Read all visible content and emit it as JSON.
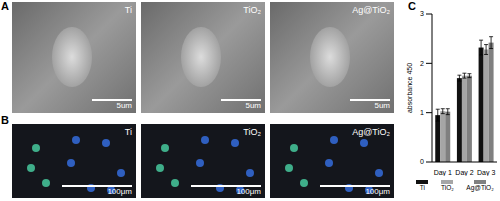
{
  "panel_labels": [
    "A",
    "B",
    "C"
  ],
  "sem_images": [
    {
      "label": "Ti",
      "scale_bar": "5um"
    },
    {
      "label": "TiO₂",
      "scale_bar": "5um"
    },
    {
      "label": "Ag@TiO₂",
      "scale_bar": "5um"
    }
  ],
  "fluorescence_images": [
    {
      "label": "Ti",
      "scale_bar": "100μm"
    },
    {
      "label": "TiO₂",
      "scale_bar": "100μm"
    },
    {
      "label": "Ag@TiO₂",
      "scale_bar": "100μm"
    }
  ],
  "chart_data": {
    "type": "bar",
    "y_label": "absorbance 450",
    "categories": [
      "Day 1",
      "Day 2",
      "Day 3"
    ],
    "series": [
      {
        "name": "Ti",
        "color": "#111111",
        "values": [
          0.95,
          1.7,
          2.32
        ],
        "errors": [
          0.12,
          0.06,
          0.15
        ]
      },
      {
        "name": "TiO₂",
        "color": "#a6a6a6",
        "values": [
          1.03,
          1.75,
          2.28
        ],
        "errors": [
          0.05,
          0.05,
          0.1
        ]
      },
      {
        "name": "Ag@TiO₂",
        "color": "#808080",
        "values": [
          1.02,
          1.75,
          2.42
        ],
        "errors": [
          0.06,
          0.04,
          0.12
        ]
      }
    ],
    "ylim": [
      0,
      3
    ],
    "yticks": [
      0,
      1,
      2,
      3
    ],
    "legend": "bottom"
  }
}
